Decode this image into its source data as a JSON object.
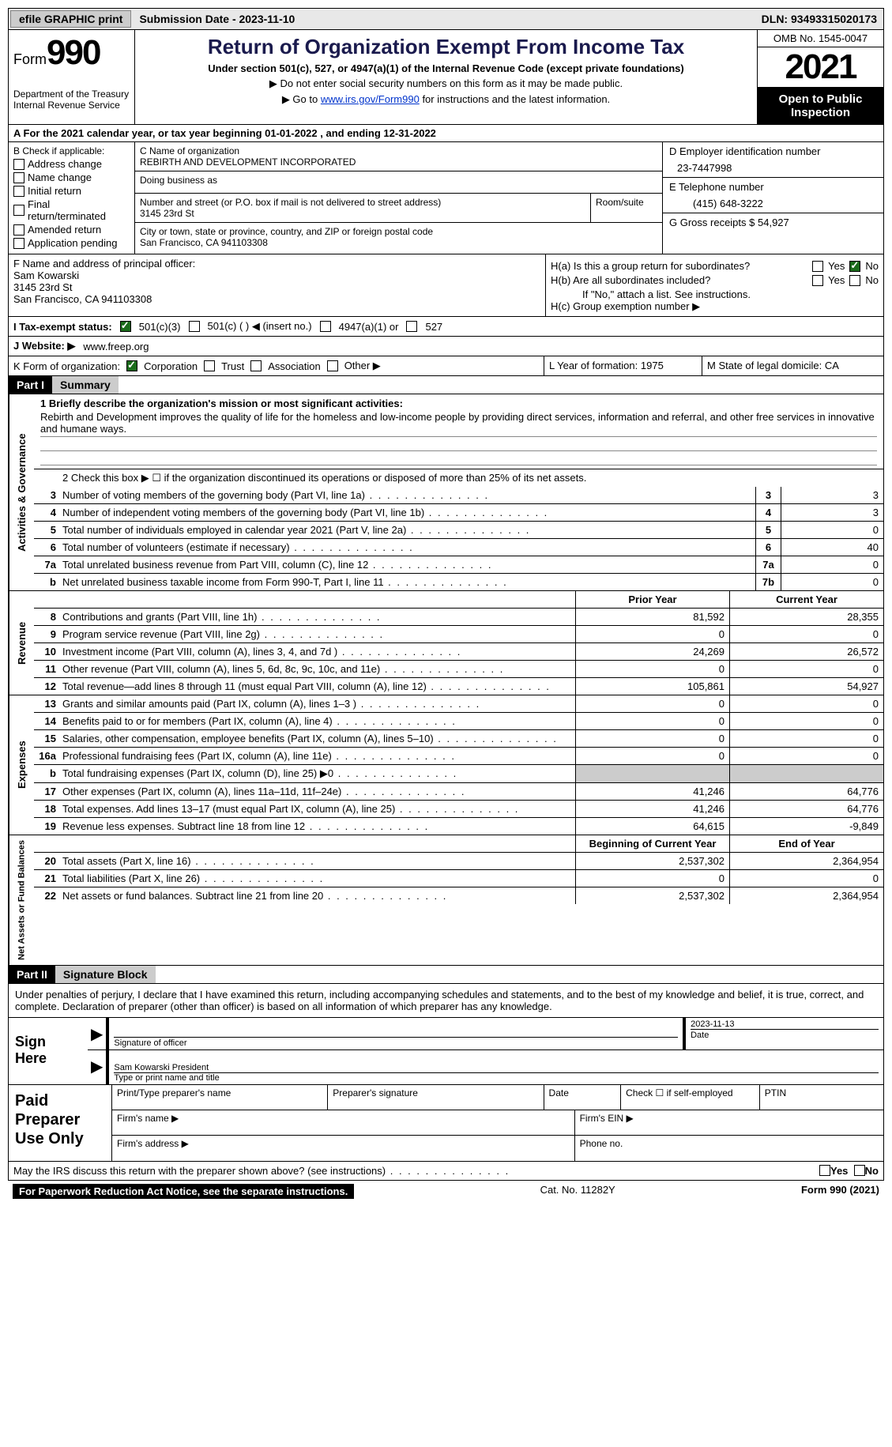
{
  "top": {
    "efile": "efile GRAPHIC print",
    "submission": "Submission Date - 2023-11-10",
    "dln": "DLN: 93493315020173"
  },
  "header": {
    "form": "Form",
    "form_num": "990",
    "dept": "Department of the Treasury Internal Revenue Service",
    "title": "Return of Organization Exempt From Income Tax",
    "subtitle": "Under section 501(c), 527, or 4947(a)(1) of the Internal Revenue Code (except private foundations)",
    "note1": "▶ Do not enter social security numbers on this form as it may be made public.",
    "note2_pre": "▶ Go to ",
    "note2_link": "www.irs.gov/Form990",
    "note2_post": " for instructions and the latest information.",
    "omb": "OMB No. 1545-0047",
    "year": "2021",
    "inspection": "Open to Public Inspection"
  },
  "row_a": "A For the 2021 calendar year, or tax year beginning 01-01-2022    , and ending 12-31-2022",
  "col_b": {
    "label": "B Check if applicable:",
    "opts": [
      "Address change",
      "Name change",
      "Initial return",
      "Final return/terminated",
      "Amended return",
      "Application pending"
    ]
  },
  "col_c": {
    "name_label": "C Name of organization",
    "name": "REBIRTH AND DEVELOPMENT INCORPORATED",
    "dba": "Doing business as",
    "addr_label": "Number and street (or P.O. box if mail is not delivered to street address)",
    "addr": "3145 23rd St",
    "room": "Room/suite",
    "city_label": "City or town, state or province, country, and ZIP or foreign postal code",
    "city": "San Francisco, CA  941103308"
  },
  "col_d": {
    "ein_label": "D Employer identification number",
    "ein": "23-7447998",
    "phone_label": "E Telephone number",
    "phone": "(415) 648-3222",
    "gross_label": "G Gross receipts $",
    "gross": "54,927"
  },
  "col_f": {
    "label": "F  Name and address of principal officer:",
    "name": "Sam Kowarski",
    "addr1": "3145 23rd St",
    "addr2": "San Francisco, CA  941103308"
  },
  "col_h": {
    "ha": "H(a)  Is this a group return for subordinates?",
    "hb": "H(b)  Are all subordinates included?",
    "hb_note": "If \"No,\" attach a list. See instructions.",
    "hc": "H(c)  Group exemption number ▶",
    "yes": "Yes",
    "no": "No"
  },
  "row_i": {
    "label": "I    Tax-exempt status:",
    "opt1": "501(c)(3)",
    "opt2": "501(c) (   ) ◀ (insert no.)",
    "opt3": "4947(a)(1) or",
    "opt4": "527"
  },
  "row_j": {
    "label": "J   Website: ▶",
    "val": "www.freep.org"
  },
  "row_k": {
    "label": "K Form of organization:",
    "opts": [
      "Corporation",
      "Trust",
      "Association",
      "Other ▶"
    ],
    "l_label": "L Year of formation:",
    "l_val": "1975",
    "m_label": "M State of legal domicile:",
    "m_val": "CA"
  },
  "part1": {
    "num": "Part I",
    "title": "Summary"
  },
  "governance": {
    "label": "Activities & Governance",
    "mission_label": "1    Briefly describe the organization's mission or most significant activities:",
    "mission": "Rebirth and Development improves the quality of life for the homeless and low-income people by providing direct services, information and referral, and other free services in innovative and humane ways.",
    "line2": "2    Check this box ▶ ☐  if the organization discontinued its operations or disposed of more than 25% of its net assets.",
    "rows": [
      {
        "n": "3",
        "t": "Number of voting members of the governing body (Part VI, line 1a)",
        "b": "3",
        "v": "3"
      },
      {
        "n": "4",
        "t": "Number of independent voting members of the governing body (Part VI, line 1b)",
        "b": "4",
        "v": "3"
      },
      {
        "n": "5",
        "t": "Total number of individuals employed in calendar year 2021 (Part V, line 2a)",
        "b": "5",
        "v": "0"
      },
      {
        "n": "6",
        "t": "Total number of volunteers (estimate if necessary)",
        "b": "6",
        "v": "40"
      },
      {
        "n": "7a",
        "t": "Total unrelated business revenue from Part VIII, column (C), line 12",
        "b": "7a",
        "v": "0"
      },
      {
        "n": "b",
        "t": "Net unrelated business taxable income from Form 990-T, Part I, line 11",
        "b": "7b",
        "v": "0"
      }
    ]
  },
  "revenue": {
    "label": "Revenue",
    "prior": "Prior Year",
    "current": "Current Year",
    "rows": [
      {
        "n": "8",
        "t": "Contributions and grants (Part VIII, line 1h)",
        "p": "81,592",
        "c": "28,355"
      },
      {
        "n": "9",
        "t": "Program service revenue (Part VIII, line 2g)",
        "p": "0",
        "c": "0"
      },
      {
        "n": "10",
        "t": "Investment income (Part VIII, column (A), lines 3, 4, and 7d )",
        "p": "24,269",
        "c": "26,572"
      },
      {
        "n": "11",
        "t": "Other revenue (Part VIII, column (A), lines 5, 6d, 8c, 9c, 10c, and 11e)",
        "p": "0",
        "c": "0"
      },
      {
        "n": "12",
        "t": "Total revenue—add lines 8 through 11 (must equal Part VIII, column (A), line 12)",
        "p": "105,861",
        "c": "54,927"
      }
    ]
  },
  "expenses": {
    "label": "Expenses",
    "rows": [
      {
        "n": "13",
        "t": "Grants and similar amounts paid (Part IX, column (A), lines 1–3 )",
        "p": "0",
        "c": "0"
      },
      {
        "n": "14",
        "t": "Benefits paid to or for members (Part IX, column (A), line 4)",
        "p": "0",
        "c": "0"
      },
      {
        "n": "15",
        "t": "Salaries, other compensation, employee benefits (Part IX, column (A), lines 5–10)",
        "p": "0",
        "c": "0"
      },
      {
        "n": "16a",
        "t": "Professional fundraising fees (Part IX, column (A), line 11e)",
        "p": "0",
        "c": "0"
      },
      {
        "n": "b",
        "t": "Total fundraising expenses (Part IX, column (D), line 25) ▶0",
        "p": "shade",
        "c": "shade"
      },
      {
        "n": "17",
        "t": "Other expenses (Part IX, column (A), lines 11a–11d, 11f–24e)",
        "p": "41,246",
        "c": "64,776"
      },
      {
        "n": "18",
        "t": "Total expenses. Add lines 13–17 (must equal Part IX, column (A), line 25)",
        "p": "41,246",
        "c": "64,776"
      },
      {
        "n": "19",
        "t": "Revenue less expenses. Subtract line 18 from line 12",
        "p": "64,615",
        "c": "-9,849"
      }
    ]
  },
  "netassets": {
    "label": "Net Assets or Fund Balances",
    "begin": "Beginning of Current Year",
    "end": "End of Year",
    "rows": [
      {
        "n": "20",
        "t": "Total assets (Part X, line 16)",
        "p": "2,537,302",
        "c": "2,364,954"
      },
      {
        "n": "21",
        "t": "Total liabilities (Part X, line 26)",
        "p": "0",
        "c": "0"
      },
      {
        "n": "22",
        "t": "Net assets or fund balances. Subtract line 21 from line 20",
        "p": "2,537,302",
        "c": "2,364,954"
      }
    ]
  },
  "part2": {
    "num": "Part II",
    "title": "Signature Block",
    "declaration": "Under penalties of perjury, I declare that I have examined this return, including accompanying schedules and statements, and to the best of my knowledge and belief, it is true, correct, and complete. Declaration of preparer (other than officer) is based on all information of which preparer has any knowledge."
  },
  "sign": {
    "label": "Sign Here",
    "sig_label": "Signature of officer",
    "date": "2023-11-13",
    "date_label": "Date",
    "name": "Sam Kowarski  President",
    "name_label": "Type or print name and title"
  },
  "prep": {
    "label": "Paid Preparer Use Only",
    "h1": "Print/Type preparer's name",
    "h2": "Preparer's signature",
    "h3": "Date",
    "h4_pre": "Check ☐ if self-employed",
    "h5": "PTIN",
    "firm_name": "Firm's name    ▶",
    "firm_ein": "Firm's EIN ▶",
    "firm_addr": "Firm's address ▶",
    "phone": "Phone no."
  },
  "footer": {
    "discuss": "May the IRS discuss this return with the preparer shown above? (see instructions)",
    "yes": "Yes",
    "no": "No",
    "paperwork": "For Paperwork Reduction Act Notice, see the separate instructions.",
    "cat": "Cat. No. 11282Y",
    "form": "Form 990 (2021)"
  }
}
